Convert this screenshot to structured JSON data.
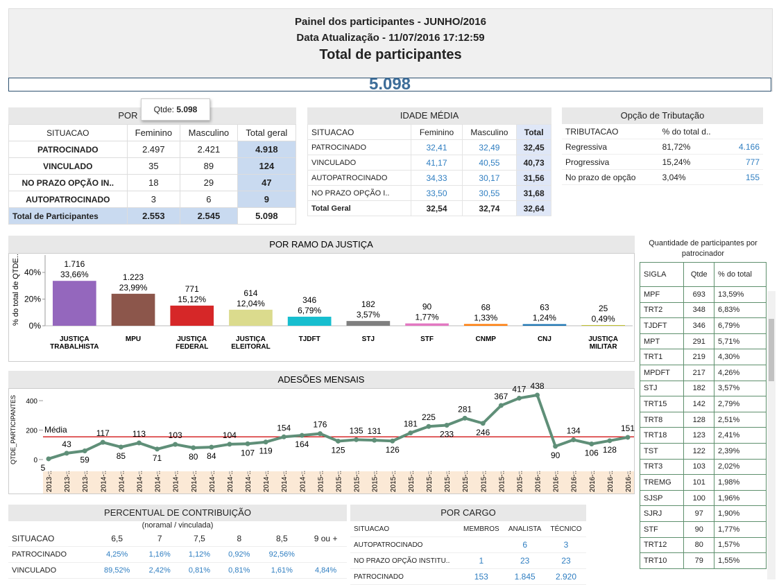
{
  "header": {
    "title": "Painel dos participantes - JUNHO/2016",
    "updated": "Data Atualização - 11/07/2016 17:12:59",
    "total_label": "Total de participantes",
    "total_value": "5.098"
  },
  "tooltip": {
    "label": "Qtde:",
    "value": "5.098"
  },
  "por_situacao": {
    "title": "POR SITUAÇÃO",
    "columns": [
      "SITUACAO",
      "Feminino",
      "Masculino",
      "Total geral"
    ],
    "rows": [
      [
        "PATROCINADO",
        "2.497",
        "2.421",
        "4.918"
      ],
      [
        "VINCULADO",
        "35",
        "89",
        "124"
      ],
      [
        "NO PRAZO OPÇÃO IN..",
        "18",
        "29",
        "47"
      ],
      [
        "AUTOPATROCINADO",
        "3",
        "6",
        "9"
      ],
      [
        "Total de Participantes",
        "2.553",
        "2.545",
        "5.098"
      ]
    ]
  },
  "idade_media": {
    "title": "IDADE MÉDIA",
    "columns": [
      "SITUACAO",
      "Feminino",
      "Masculino",
      "Total"
    ],
    "rows": [
      [
        "PATROCINADO",
        "32,41",
        "32,49",
        "32,45"
      ],
      [
        "VINCULADO",
        "41,17",
        "40,55",
        "40,73"
      ],
      [
        "AUTOPATROCINADO",
        "34,33",
        "30,17",
        "31,56"
      ],
      [
        "NO PRAZO OPÇÃO I..",
        "33,50",
        "30,55",
        "31,68"
      ],
      [
        "Total Geral",
        "32,54",
        "32,74",
        "32,64"
      ]
    ]
  },
  "tributacao": {
    "title": "Opção de Tributação",
    "columns": [
      "TRIBUTACAO",
      "% do total d..",
      null
    ],
    "rows": [
      [
        "Regressiva",
        "81,72%",
        "4.166"
      ],
      [
        "Progressiva",
        "15,24%",
        "777"
      ],
      [
        "No prazo de opção",
        "3,04%",
        "155"
      ]
    ]
  },
  "percentual_contribuicao": {
    "title": "PERCENTUAL DE CONTRIBUIÇÃO",
    "subtitle": "(noramal / vinculada)",
    "columns": [
      "SITUACAO",
      "6,5",
      "7",
      "7,5",
      "8",
      "8,5",
      "9 ou +"
    ],
    "rows": [
      [
        "PATROCINADO",
        "4,25%",
        "1,16%",
        "1,12%",
        "0,92%",
        "92,56%",
        null
      ],
      [
        "VINCULADO",
        "89,52%",
        "2,42%",
        "0,81%",
        "0,81%",
        "1,61%",
        "4,84%"
      ]
    ]
  },
  "por_cargo": {
    "title": "POR CARGO",
    "columns": [
      "SITUACAO",
      "MEMBROS",
      "ANALISTA",
      "TÉCNICO"
    ],
    "rows": [
      [
        "AUTOPATROCINADO",
        null,
        "6",
        "3"
      ],
      [
        "NO PRAZO OPÇÃO INSTITU..",
        "1",
        "23",
        "23"
      ],
      [
        "PATROCINADO",
        "153",
        "1.845",
        "2.920"
      ]
    ]
  },
  "por_patrocinador": {
    "title": "Quantidade de participantes por patrocinador",
    "columns": [
      "SIGLA",
      "Qtde",
      "% do total"
    ],
    "rows": [
      [
        "MPF",
        "693",
        "13,59%"
      ],
      [
        "TRT2",
        "348",
        "6,83%"
      ],
      [
        "TJDFT",
        "346",
        "6,79%"
      ],
      [
        "MPT",
        "291",
        "5,71%"
      ],
      [
        "TRT1",
        "219",
        "4,30%"
      ],
      [
        "MPDFT",
        "217",
        "4,26%"
      ],
      [
        "STJ",
        "182",
        "3,57%"
      ],
      [
        "TRT15",
        "142",
        "2,79%"
      ],
      [
        "TRT8",
        "128",
        "2,51%"
      ],
      [
        "TRT18",
        "123",
        "2,41%"
      ],
      [
        "TST",
        "122",
        "2,39%"
      ],
      [
        "TRT3",
        "103",
        "2,02%"
      ],
      [
        "TREMG",
        "101",
        "1,98%"
      ],
      [
        "SJSP",
        "100",
        "1,96%"
      ],
      [
        "SJRJ",
        "97",
        "1,90%"
      ],
      [
        "STF",
        "90",
        "1,77%"
      ],
      [
        "TRT12",
        "80",
        "1,57%"
      ],
      [
        "TRT10",
        "79",
        "1,55%"
      ]
    ]
  },
  "chart_data": [
    {
      "type": "bar",
      "title": "POR RAMO DA JUSTIÇA",
      "y_label": "% do total de QTDE..",
      "categories": [
        "JUSTIÇA TRABALHISTA",
        "MPU",
        "JUSTIÇA FEDERAL",
        "JUSTIÇA ELEITORAL",
        "TJDFT",
        "STJ",
        "STF",
        "CNMP",
        "CNJ",
        "JUSTIÇA MILITAR"
      ],
      "values": [
        33.66,
        23.99,
        15.12,
        12.04,
        6.79,
        3.57,
        1.77,
        1.33,
        1.24,
        0.49
      ],
      "value_labels": [
        "33,66%",
        "23,99%",
        "15,12%",
        "12,04%",
        "6,79%",
        "3,57%",
        "1,77%",
        "1,33%",
        "1,24%",
        "0,49%"
      ],
      "count_labels": [
        "1.716",
        "1.223",
        "771",
        "614",
        "346",
        "182",
        "90",
        "68",
        "63",
        "25"
      ],
      "colors": [
        "#9467bd",
        "#8c564b",
        "#d62728",
        "#dbdb8d",
        "#17becf",
        "#7f7f7f",
        "#e377c2",
        "#ff7f0e",
        "#1f77b4",
        "#bcbd22"
      ],
      "ylim": [
        0,
        53
      ],
      "yticks": [
        {
          "value": 0,
          "label": "0%"
        },
        {
          "value": 20,
          "label": "20%"
        },
        {
          "value": 40,
          "label": "40%"
        }
      ]
    },
    {
      "type": "line",
      "title": "ADESÕES MENSAIS",
      "y_label": "QTDE_PARTICIPANTES",
      "categories": [
        "2013-..",
        "2013-..",
        "2013-..",
        "2014-..",
        "2014-..",
        "2014-..",
        "2014-..",
        "2014-..",
        "2014-..",
        "2014-..",
        "2014-..",
        "2014-..",
        "2014-..",
        "2014-..",
        "2014-..",
        "2015-..",
        "2015-..",
        "2015-..",
        "2015-..",
        "2015-..",
        "2015-..",
        "2015-..",
        "2015-..",
        "2015-..",
        "2015-..",
        "2015-..",
        "2015-..",
        "2016-..",
        "2016-..",
        "2016-..",
        "2016-..",
        "2016-..",
        "2016-.."
      ],
      "values": [
        5,
        43,
        59,
        117,
        85,
        113,
        71,
        103,
        80,
        84,
        104,
        107,
        119,
        154,
        164,
        176,
        125,
        135,
        131,
        126,
        181,
        225,
        233,
        281,
        246,
        367,
        417,
        438,
        90,
        134,
        106,
        128,
        151
      ],
      "color": "#5f8f78",
      "mean": 154.5,
      "mean_label": "Média",
      "mean_color": "#d62728",
      "ylim": [
        -80,
        485
      ],
      "yticks": [
        0,
        200,
        400
      ]
    }
  ]
}
